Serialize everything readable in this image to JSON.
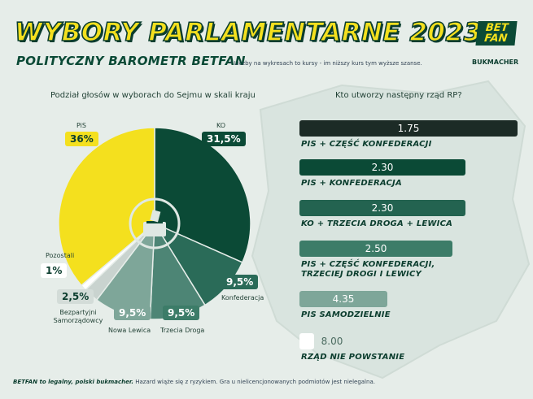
{
  "header": {
    "title": "WYBORY PARLAMENTARNE 2023",
    "subtitle": "POLITYCZNY BAROMETR BETFAN",
    "note": "* Liczby na wykresach to kursy - im niższy kurs tym wyższe szanse.",
    "logo_line1": "BET",
    "logo_line2": "FAN",
    "logo_tag": "BUKMACHER"
  },
  "colors": {
    "dark_green": "#0b4a36",
    "mid_green": "#2a6b58",
    "light_green": "#7ea699",
    "yellow": "#f4e01e",
    "grey": "#c9d3cf"
  },
  "chart_data": [
    {
      "type": "pie",
      "title": "Podział głosów w wyborach do Sejmu w skali kraju",
      "categories": [
        "PiS",
        "KO",
        "Konfederacja",
        "Trzecia Droga",
        "Nowa Lewica",
        "Bezpartyjni Samorządowcy",
        "Pozostali"
      ],
      "values": [
        36,
        31.5,
        9.5,
        9.5,
        9.5,
        2.5,
        1
      ],
      "value_labels": [
        "36%",
        "31,5%",
        "9,5%",
        "9,5%",
        "9,5%",
        "2,5%",
        "1%"
      ],
      "colors": [
        "#f4e01e",
        "#0b4a36",
        "#2a6b58",
        "#4d8575",
        "#7ea699",
        "#c9d3cf",
        "#ffffff"
      ],
      "center_icon": "ballot-box-icon"
    },
    {
      "type": "bar",
      "title": "Kto utworzy następny rząd RP?",
      "categories": [
        "PIS + CZĘŚĆ KONFEDERACJI",
        "PIS + KONFEDERACJA",
        "KO + TRZECIA DROGA + LEWICA",
        "PIS + CZĘŚĆ KONFEDERACJI, TRZECIEJ DROGI I LEWICY",
        "PIS SAMODZIELNIE",
        "RZĄD NIE POWSTANIE"
      ],
      "values": [
        1.75,
        2.3,
        2.3,
        2.5,
        4.35,
        8.0
      ],
      "value_labels": [
        "1.75",
        "2.30",
        "2.30",
        "2.50",
        "4.35",
        "8.00"
      ],
      "colors": [
        "#1c2b26",
        "#0b4a36",
        "#236350",
        "#3c7c68",
        "#7ea699",
        "#ffffff"
      ]
    }
  ],
  "pie_labels": {
    "pis": "PiS",
    "ko": "KO",
    "konf": "Konfederacja",
    "td": "Trzecia Droga",
    "nl": "Nowa Lewica",
    "bs": "Bezpartyjni Samorządowcy",
    "poz": "Pozostali"
  },
  "bar_labels": {
    "l0": "PIS + CZĘŚĆ KONFEDERACJI",
    "l1": "PIS + KONFEDERACJA",
    "l2": "KO + TRZECIA DROGA + LEWICA",
    "l3a": "PIS + CZĘŚĆ KONFEDERACJI,",
    "l3b": "TRZECIEJ DROGI I LEWICY",
    "l4": "PIS SAMODZIELNIE",
    "l5": "RZĄD NIE POWSTANIE"
  },
  "footer": {
    "brand": "BETFAN to legalny, polski bukmacher.",
    "text": "Hazard wiąże się z ryzykiem. Gra u nielicencjonowanych podmiotów jest nielegalna."
  }
}
